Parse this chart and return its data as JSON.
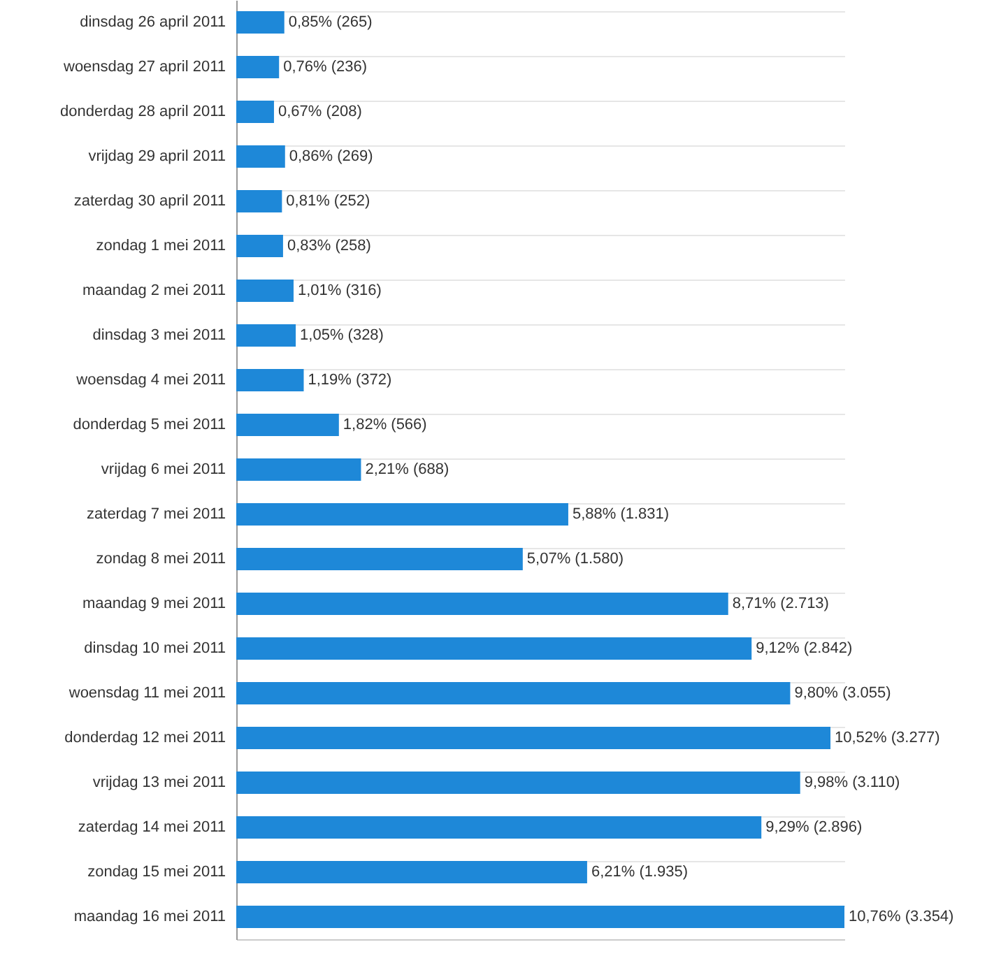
{
  "chart_data": {
    "type": "bar",
    "orientation": "horizontal",
    "categories": [
      "dinsdag 26 april 2011",
      "woensdag 27 april 2011",
      "donderdag 28 april 2011",
      "vrijdag 29 april 2011",
      "zaterdag 30 april 2011",
      "zondag 1 mei 2011",
      "maandag 2 mei 2011",
      "dinsdag 3 mei 2011",
      "woensdag 4 mei 2011",
      "donderdag 5 mei 2011",
      "vrijdag 6 mei 2011",
      "zaterdag 7 mei 2011",
      "zondag 8 mei 2011",
      "maandag 9 mei 2011",
      "dinsdag 10 mei 2011",
      "woensdag 11 mei 2011",
      "donderdag 12 mei 2011",
      "vrijdag 13 mei 2011",
      "zaterdag 14 mei 2011",
      "zondag 15 mei 2011",
      "maandag 16 mei 2011"
    ],
    "series": [
      {
        "color": "#1e88d8",
        "values": [
          265,
          236,
          208,
          269,
          252,
          258,
          316,
          328,
          372,
          566,
          688,
          1831,
          1580,
          2713,
          2842,
          3055,
          3277,
          3110,
          2896,
          1935,
          3354
        ],
        "value_labels": [
          "0,85% (265)",
          "0,76% (236)",
          "0,67% (208)",
          "0,86% (269)",
          "0,81% (252)",
          "0,83% (258)",
          "1,01% (316)",
          "1,05% (328)",
          "1,19% (372)",
          "1,82% (566)",
          "2,21% (688)",
          "5,88% (1.831)",
          "5,07% (1.580)",
          "8,71% (2.713)",
          "9,12% (2.842)",
          "9,80% (3.055)",
          "10,52% (3.277)",
          "9,98% (3.110)",
          "9,29% (2.896)",
          "6,21% (1.935)",
          "10,76% (3.354)"
        ]
      }
    ],
    "grid": true,
    "tick_labels": "y"
  }
}
